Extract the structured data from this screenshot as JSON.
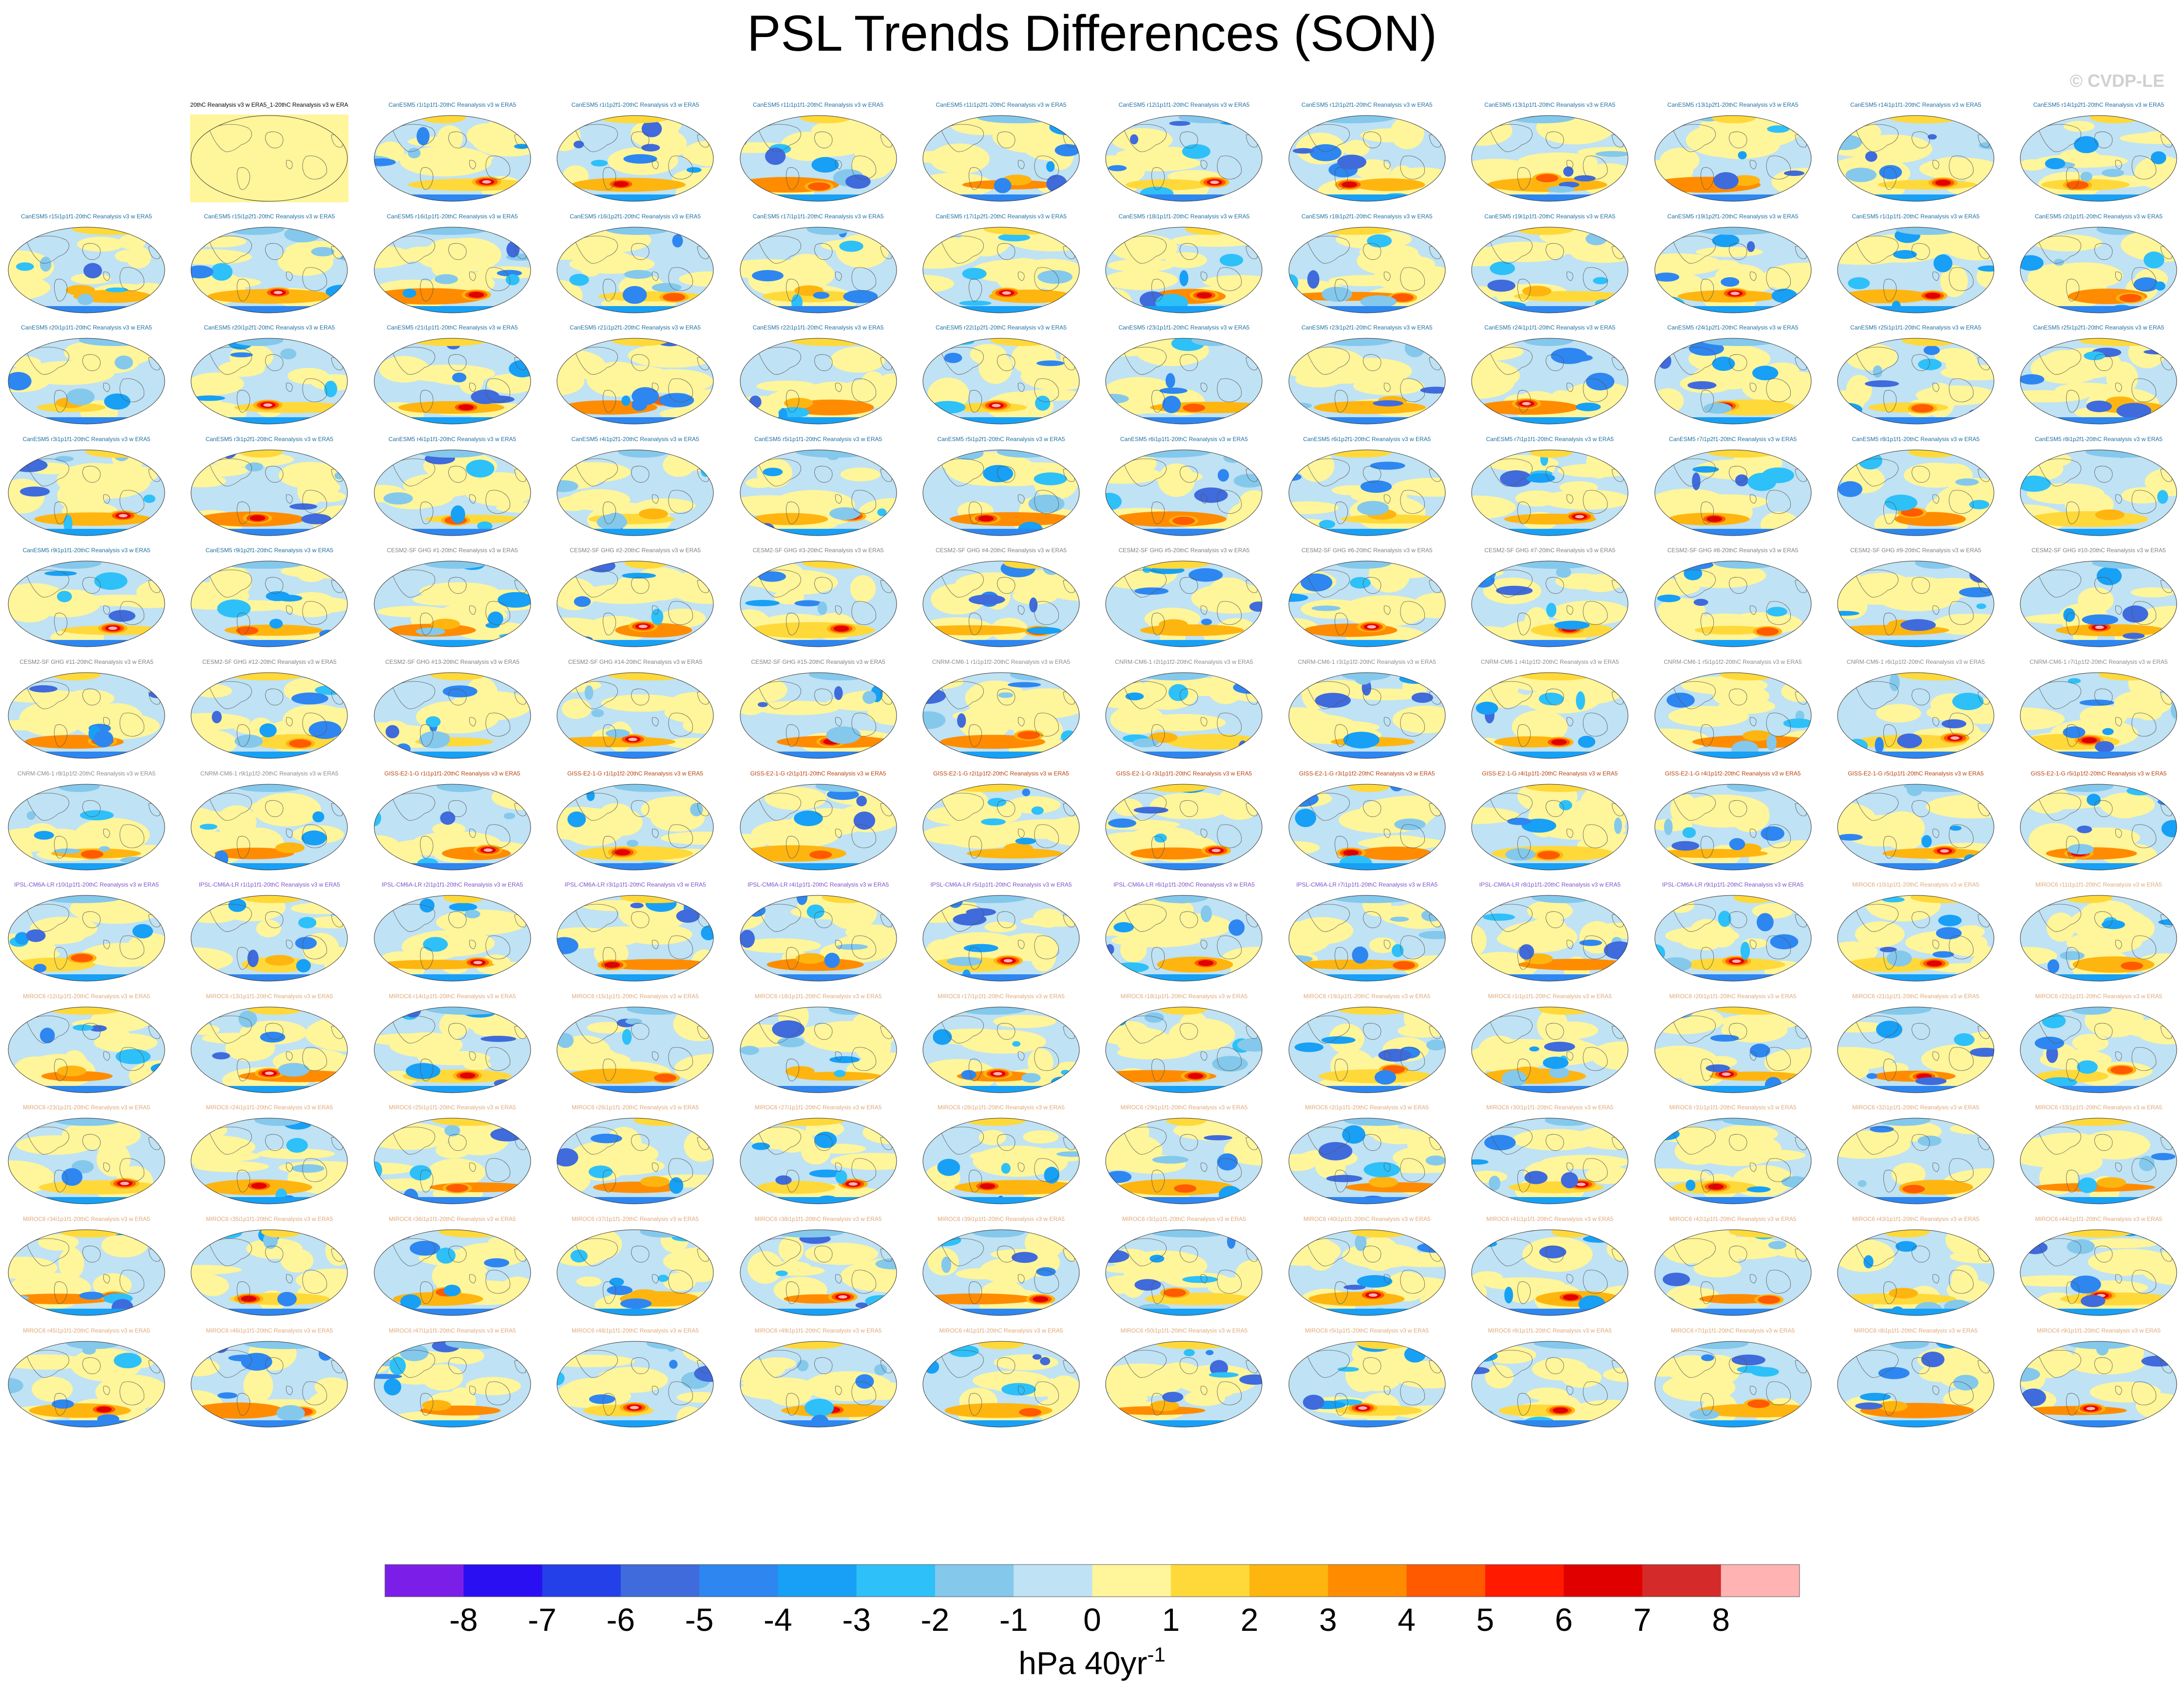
{
  "title": "PSL Trends Differences (SON)",
  "watermark": "© CVDP-LE",
  "chart_data": {
    "type": "heatmap",
    "title": "PSL Trends Differences (SON)",
    "projection": "Robinson global maps, Pacific-centered",
    "colorbar": {
      "ticks": [
        "-8",
        "-7",
        "-6",
        "-5",
        "-4",
        "-3",
        "-2",
        "-1",
        "0",
        "1",
        "2",
        "3",
        "4",
        "5",
        "6",
        "7",
        "8"
      ],
      "colors": [
        "#7b1fe8",
        "#2a0ff2",
        "#2440e8",
        "#3f6bdc",
        "#2e86f0",
        "#17a0f5",
        "#2ec0f8",
        "#84c8ec",
        "#bfe2f4",
        "#fff59a",
        "#ffd93a",
        "#ffb50f",
        "#ff8c00",
        "#ff5a00",
        "#ff1a00",
        "#e00000",
        "#d42a2a",
        "#ffb3b3"
      ],
      "unit_base": "hPa 40yr",
      "unit_exp": "-1",
      "range": [
        -8,
        8
      ]
    },
    "panels": [
      {
        "label": "20thC Reanalysis v3 w ERA5_1-20thC Reanalysis v3 w ERA5",
        "group": "obs"
      },
      {
        "label": "CanESM5 r1i1p1f1-20thC Reanalysis v3 w ERA5",
        "group": "CanESM5"
      },
      {
        "label": "CanESM5 r1i1p2f1-20thC Reanalysis v3 w ERA5",
        "group": "CanESM5"
      },
      {
        "label": "CanESM5 r11i1p1f1-20thC Reanalysis v3 w ERA5",
        "group": "CanESM5"
      },
      {
        "label": "CanESM5 r11i1p2f1-20thC Reanalysis v3 w ERA5",
        "group": "CanESM5"
      },
      {
        "label": "CanESM5 r12i1p1f1-20thC Reanalysis v3 w ERA5",
        "group": "CanESM5"
      },
      {
        "label": "CanESM5 r12i1p2f1-20thC Reanalysis v3 w ERA5",
        "group": "CanESM5"
      },
      {
        "label": "CanESM5 r13i1p1f1-20thC Reanalysis v3 w ERA5",
        "group": "CanESM5"
      },
      {
        "label": "CanESM5 r13i1p2f1-20thC Reanalysis v3 w ERA5",
        "group": "CanESM5"
      },
      {
        "label": "CanESM5 r14i1p1f1-20thC Reanalysis v3 w ERA5",
        "group": "CanESM5"
      },
      {
        "label": "CanESM5 r14i1p2f1-20thC Reanalysis v3 w ERA5",
        "group": "CanESM5"
      },
      {
        "label": "CanESM5 r15i1p1f1-20thC Reanalysis v3 w ERA5",
        "group": "CanESM5"
      },
      {
        "label": "CanESM5 r15i1p2f1-20thC Reanalysis v3 w ERA5",
        "group": "CanESM5"
      },
      {
        "label": "CanESM5 r16i1p1f1-20thC Reanalysis v3 w ERA5",
        "group": "CanESM5"
      },
      {
        "label": "CanESM5 r16i1p2f1-20thC Reanalysis v3 w ERA5",
        "group": "CanESM5"
      },
      {
        "label": "CanESM5 r17i1p1f1-20thC Reanalysis v3 w ERA5",
        "group": "CanESM5"
      },
      {
        "label": "CanESM5 r17i1p2f1-20thC Reanalysis v3 w ERA5",
        "group": "CanESM5"
      },
      {
        "label": "CanESM5 r18i1p1f1-20thC Reanalysis v3 w ERA5",
        "group": "CanESM5"
      },
      {
        "label": "CanESM5 r18i1p2f1-20thC Reanalysis v3 w ERA5",
        "group": "CanESM5"
      },
      {
        "label": "CanESM5 r19i1p1f1-20thC Reanalysis v3 w ERA5",
        "group": "CanESM5"
      },
      {
        "label": "CanESM5 r19i1p2f1-20thC Reanalysis v3 w ERA5",
        "group": "CanESM5"
      },
      {
        "label": "CanESM5 r1i1p1f1-20thC Reanalysis v3 w ERA5",
        "group": "CanESM5"
      },
      {
        "label": "CanESM5 r2i1p1f1-20thC Reanalysis v3 w ERA5",
        "group": "CanESM5"
      },
      {
        "label": "CanESM5 r20i1p1f1-20thC Reanalysis v3 w ERA5",
        "group": "CanESM5"
      },
      {
        "label": "CanESM5 r20i1p2f1-20thC Reanalysis v3 w ERA5",
        "group": "CanESM5"
      },
      {
        "label": "CanESM5 r21i1p1f1-20thC Reanalysis v3 w ERA5",
        "group": "CanESM5"
      },
      {
        "label": "CanESM5 r21i1p2f1-20thC Reanalysis v3 w ERA5",
        "group": "CanESM5"
      },
      {
        "label": "CanESM5 r22i1p1f1-20thC Reanalysis v3 w ERA5",
        "group": "CanESM5"
      },
      {
        "label": "CanESM5 r22i1p2f1-20thC Reanalysis v3 w ERA5",
        "group": "CanESM5"
      },
      {
        "label": "CanESM5 r23i1p1f1-20thC Reanalysis v3 w ERA5",
        "group": "CanESM5"
      },
      {
        "label": "CanESM5 r23i1p2f1-20thC Reanalysis v3 w ERA5",
        "group": "CanESM5"
      },
      {
        "label": "CanESM5 r24i1p1f1-20thC Reanalysis v3 w ERA5",
        "group": "CanESM5"
      },
      {
        "label": "CanESM5 r24i1p2f1-20thC Reanalysis v3 w ERA5",
        "group": "CanESM5"
      },
      {
        "label": "CanESM5 r25i1p1f1-20thC Reanalysis v3 w ERA5",
        "group": "CanESM5"
      },
      {
        "label": "CanESM5 r25i1p2f1-20thC Reanalysis v3 w ERA5",
        "group": "CanESM5"
      },
      {
        "label": "CanESM5 r3i1p1f1-20thC Reanalysis v3 w ERA5",
        "group": "CanESM5"
      },
      {
        "label": "CanESM5 r3i1p2f1-20thC Reanalysis v3 w ERA5",
        "group": "CanESM5"
      },
      {
        "label": "CanESM5 r4i1p1f1-20thC Reanalysis v3 w ERA5",
        "group": "CanESM5"
      },
      {
        "label": "CanESM5 r4i1p2f1-20thC Reanalysis v3 w ERA5",
        "group": "CanESM5"
      },
      {
        "label": "CanESM5 r5i1p1f1-20thC Reanalysis v3 w ERA5",
        "group": "CanESM5"
      },
      {
        "label": "CanESM5 r5i1p2f1-20thC Reanalysis v3 w ERA5",
        "group": "CanESM5"
      },
      {
        "label": "CanESM5 r6i1p1f1-20thC Reanalysis v3 w ERA5",
        "group": "CanESM5"
      },
      {
        "label": "CanESM5 r6i1p2f1-20thC Reanalysis v3 w ERA5",
        "group": "CanESM5"
      },
      {
        "label": "CanESM5 r7i1p1f1-20thC Reanalysis v3 w ERA5",
        "group": "CanESM5"
      },
      {
        "label": "CanESM5 r7i1p2f1-20thC Reanalysis v3 w ERA5",
        "group": "CanESM5"
      },
      {
        "label": "CanESM5 r8i1p1f1-20thC Reanalysis v3 w ERA5",
        "group": "CanESM5"
      },
      {
        "label": "CanESM5 r8i1p2f1-20thC Reanalysis v3 w ERA5",
        "group": "CanESM5"
      },
      {
        "label": "CanESM5 r9i1p1f1-20thC Reanalysis v3 w ERA5",
        "group": "CanESM5"
      },
      {
        "label": "CanESM5 r9i1p2f1-20thC Reanalysis v3 w ERA5",
        "group": "CanESM5"
      },
      {
        "label": "CESM2-SF GHG #1-20thC Reanalysis v3 w ERA5",
        "group": "CESM2"
      },
      {
        "label": "CESM2-SF GHG #2-20thC Reanalysis v3 w ERA5",
        "group": "CESM2"
      },
      {
        "label": "CESM2-SF GHG #3-20thC Reanalysis v3 w ERA5",
        "group": "CESM2"
      },
      {
        "label": "CESM2-SF GHG #4-20thC Reanalysis v3 w ERA5",
        "group": "CESM2"
      },
      {
        "label": "CESM2-SF GHG #5-20thC Reanalysis v3 w ERA5",
        "group": "CESM2"
      },
      {
        "label": "CESM2-SF GHG #6-20thC Reanalysis v3 w ERA5",
        "group": "CESM2"
      },
      {
        "label": "CESM2-SF GHG #7-20thC Reanalysis v3 w ERA5",
        "group": "CESM2"
      },
      {
        "label": "CESM2-SF GHG #8-20thC Reanalysis v3 w ERA5",
        "group": "CESM2"
      },
      {
        "label": "CESM2-SF GHG #9-20thC Reanalysis v3 w ERA5",
        "group": "CESM2"
      },
      {
        "label": "CESM2-SF GHG #10-20thC Reanalysis v3 w ERA5",
        "group": "CESM2"
      },
      {
        "label": "CESM2-SF GHG #11-20thC Reanalysis v3 w ERA5",
        "group": "CESM2"
      },
      {
        "label": "CESM2-SF GHG #12-20thC Reanalysis v3 w ERA5",
        "group": "CESM2"
      },
      {
        "label": "CESM2-SF GHG #13-20thC Reanalysis v3 w ERA5",
        "group": "CESM2"
      },
      {
        "label": "CESM2-SF GHG #14-20thC Reanalysis v3 w ERA5",
        "group": "CESM2"
      },
      {
        "label": "CESM2-SF GHG #15-20thC Reanalysis v3 w ERA5",
        "group": "CESM2"
      },
      {
        "label": "CNRM-CM6-1 r1i1p1f2-20thC Reanalysis v3 w ERA5",
        "group": "CNRM"
      },
      {
        "label": "CNRM-CM6-1 r2i1p1f2-20thC Reanalysis v3 w ERA5",
        "group": "CNRM"
      },
      {
        "label": "CNRM-CM6-1 r3i1p1f2-20thC Reanalysis v3 w ERA5",
        "group": "CNRM"
      },
      {
        "label": "CNRM-CM6-1 r4i1p1f2-20thC Reanalysis v3 w ERA5",
        "group": "CNRM"
      },
      {
        "label": "CNRM-CM6-1 r5i1p1f2-20thC Reanalysis v3 w ERA5",
        "group": "CNRM"
      },
      {
        "label": "CNRM-CM6-1 r6i1p1f2-20thC Reanalysis v3 w ERA5",
        "group": "CNRM"
      },
      {
        "label": "CNRM-CM6-1 r7i1p1f2-20thC Reanalysis v3 w ERA5",
        "group": "CNRM"
      },
      {
        "label": "CNRM-CM6-1 r8i1p1f2-20thC Reanalysis v3 w ERA5",
        "group": "CNRM"
      },
      {
        "label": "CNRM-CM6-1 r9i1p1f2-20thC Reanalysis v3 w ERA5",
        "group": "CNRM"
      },
      {
        "label": "GISS-E2-1-G r1i1p1f1-20thC Reanalysis v3 w ERA5",
        "group": "GISS"
      },
      {
        "label": "GISS-E2-1-G r1i1p1f2-20thC Reanalysis v3 w ERA5",
        "group": "GISS"
      },
      {
        "label": "GISS-E2-1-G r2i1p1f1-20thC Reanalysis v3 w ERA5",
        "group": "GISS"
      },
      {
        "label": "GISS-E2-1-G r2i1p1f2-20thC Reanalysis v3 w ERA5",
        "group": "GISS"
      },
      {
        "label": "GISS-E2-1-G r3i1p1f1-20thC Reanalysis v3 w ERA5",
        "group": "GISS"
      },
      {
        "label": "GISS-E2-1-G r3i1p1f2-20thC Reanalysis v3 w ERA5",
        "group": "GISS"
      },
      {
        "label": "GISS-E2-1-G r4i1p1f1-20thC Reanalysis v3 w ERA5",
        "group": "GISS"
      },
      {
        "label": "GISS-E2-1-G r4i1p1f2-20thC Reanalysis v3 w ERA5",
        "group": "GISS"
      },
      {
        "label": "GISS-E2-1-G r5i1p1f1-20thC Reanalysis v3 w ERA5",
        "group": "GISS"
      },
      {
        "label": "GISS-E2-1-G r5i1p1f2-20thC Reanalysis v3 w ERA5",
        "group": "GISS"
      },
      {
        "label": "IPSL-CM6A-LR r10i1p1f1-20thC Reanalysis v3 w ERA5",
        "group": "IPSL"
      },
      {
        "label": "IPSL-CM6A-LR r1i1p1f1-20thC Reanalysis v3 w ERA5",
        "group": "IPSL"
      },
      {
        "label": "IPSL-CM6A-LR r2i1p1f1-20thC Reanalysis v3 w ERA5",
        "group": "IPSL"
      },
      {
        "label": "IPSL-CM6A-LR r3i1p1f1-20thC Reanalysis v3 w ERA5",
        "group": "IPSL"
      },
      {
        "label": "IPSL-CM6A-LR r4i1p1f1-20thC Reanalysis v3 w ERA5",
        "group": "IPSL"
      },
      {
        "label": "IPSL-CM6A-LR r5i1p1f1-20thC Reanalysis v3 w ERA5",
        "group": "IPSL"
      },
      {
        "label": "IPSL-CM6A-LR r6i1p1f1-20thC Reanalysis v3 w ERA5",
        "group": "IPSL"
      },
      {
        "label": "IPSL-CM6A-LR r7i1p1f1-20thC Reanalysis v3 w ERA5",
        "group": "IPSL"
      },
      {
        "label": "IPSL-CM6A-LR r8i1p1f1-20thC Reanalysis v3 w ERA5",
        "group": "IPSL"
      },
      {
        "label": "IPSL-CM6A-LR r9i1p1f1-20thC Reanalysis v3 w ERA5",
        "group": "IPSL"
      },
      {
        "label": "MIROC6 r10i1p1f1-20thC Reanalysis v3 w ERA5",
        "group": "MIROC6"
      },
      {
        "label": "MIROC6 r11i1p1f1-20thC Reanalysis v3 w ERA5",
        "group": "MIROC6"
      },
      {
        "label": "MIROC6 r12i1p1f1-20thC Reanalysis v3 w ERA5",
        "group": "MIROC6"
      },
      {
        "label": "MIROC6 r13i1p1f1-20thC Reanalysis v3 w ERA5",
        "group": "MIROC6"
      },
      {
        "label": "MIROC6 r14i1p1f1-20thC Reanalysis v3 w ERA5",
        "group": "MIROC6"
      },
      {
        "label": "MIROC6 r15i1p1f1-20thC Reanalysis v3 w ERA5",
        "group": "MIROC6"
      },
      {
        "label": "MIROC6 r16i1p1f1-20thC Reanalysis v3 w ERA5",
        "group": "MIROC6"
      },
      {
        "label": "MIROC6 r17i1p1f1-20thC Reanalysis v3 w ERA5",
        "group": "MIROC6"
      },
      {
        "label": "MIROC6 r18i1p1f1-20thC Reanalysis v3 w ERA5",
        "group": "MIROC6"
      },
      {
        "label": "MIROC6 r19i1p1f1-20thC Reanalysis v3 w ERA5",
        "group": "MIROC6"
      },
      {
        "label": "MIROC6 r1i1p1f1-20thC Reanalysis v3 w ERA5",
        "group": "MIROC6"
      },
      {
        "label": "MIROC6 r20i1p1f1-20thC Reanalysis v3 w ERA5",
        "group": "MIROC6"
      },
      {
        "label": "MIROC6 r21i1p1f1-20thC Reanalysis v3 w ERA5",
        "group": "MIROC6"
      },
      {
        "label": "MIROC6 r22i1p1f1-20thC Reanalysis v3 w ERA5",
        "group": "MIROC6"
      },
      {
        "label": "MIROC6 r23i1p1f1-20thC Reanalysis v3 w ERA5",
        "group": "MIROC6"
      },
      {
        "label": "MIROC6 r24i1p1f1-20thC Reanalysis v3 w ERA5",
        "group": "MIROC6"
      },
      {
        "label": "MIROC6 r25i1p1f1-20thC Reanalysis v3 w ERA5",
        "group": "MIROC6"
      },
      {
        "label": "MIROC6 r26i1p1f1-20thC Reanalysis v3 w ERA5",
        "group": "MIROC6"
      },
      {
        "label": "MIROC6 r27i1p1f1-20thC Reanalysis v3 w ERA5",
        "group": "MIROC6"
      },
      {
        "label": "MIROC6 r28i1p1f1-20thC Reanalysis v3 w ERA5",
        "group": "MIROC6"
      },
      {
        "label": "MIROC6 r29i1p1f1-20thC Reanalysis v3 w ERA5",
        "group": "MIROC6"
      },
      {
        "label": "MIROC6 r2i1p1f1-20thC Reanalysis v3 w ERA5",
        "group": "MIROC6"
      },
      {
        "label": "MIROC6 r30i1p1f1-20thC Reanalysis v3 w ERA5",
        "group": "MIROC6"
      },
      {
        "label": "MIROC6 r31i1p1f1-20thC Reanalysis v3 w ERA5",
        "group": "MIROC6"
      },
      {
        "label": "MIROC6 r32i1p1f1-20thC Reanalysis v3 w ERA5",
        "group": "MIROC6"
      },
      {
        "label": "MIROC6 r33i1p1f1-20thC Reanalysis v3 w ERA5",
        "group": "MIROC6"
      },
      {
        "label": "MIROC6 r34i1p1f1-20thC Reanalysis v3 w ERA5",
        "group": "MIROC6"
      },
      {
        "label": "MIROC6 r35i1p1f1-20thC Reanalysis v3 w ERA5",
        "group": "MIROC6"
      },
      {
        "label": "MIROC6 r36i1p1f1-20thC Reanalysis v3 w ERA5",
        "group": "MIROC6"
      },
      {
        "label": "MIROC6 r37i1p1f1-20thC Reanalysis v3 w ERA5",
        "group": "MIROC6"
      },
      {
        "label": "MIROC6 r38i1p1f1-20thC Reanalysis v3 w ERA5",
        "group": "MIROC6"
      },
      {
        "label": "MIROC6 r39i1p1f1-20thC Reanalysis v3 w ERA5",
        "group": "MIROC6"
      },
      {
        "label": "MIROC6 r3i1p1f1-20thC Reanalysis v3 w ERA5",
        "group": "MIROC6"
      },
      {
        "label": "MIROC6 r40i1p1f1-20thC Reanalysis v3 w ERA5",
        "group": "MIROC6"
      },
      {
        "label": "MIROC6 r41i1p1f1-20thC Reanalysis v3 w ERA5",
        "group": "MIROC6"
      },
      {
        "label": "MIROC6 r42i1p1f1-20thC Reanalysis v3 w ERA5",
        "group": "MIROC6"
      },
      {
        "label": "MIROC6 r43i1p1f1-20thC Reanalysis v3 w ERA5",
        "group": "MIROC6"
      },
      {
        "label": "MIROC6 r44i1p1f1-20thC Reanalysis v3 w ERA5",
        "group": "MIROC6"
      },
      {
        "label": "MIROC6 r45i1p1f1-20thC Reanalysis v3 w ERA5",
        "group": "MIROC6"
      },
      {
        "label": "MIROC6 r46i1p1f1-20thC Reanalysis v3 w ERA5",
        "group": "MIROC6"
      },
      {
        "label": "MIROC6 r47i1p1f1-20thC Reanalysis v3 w ERA5",
        "group": "MIROC6"
      },
      {
        "label": "MIROC6 r48i1p1f1-20thC Reanalysis v3 w ERA5",
        "group": "MIROC6"
      },
      {
        "label": "MIROC6 r49i1p1f1-20thC Reanalysis v3 w ERA5",
        "group": "MIROC6"
      },
      {
        "label": "MIROC6 r4i1p1f1-20thC Reanalysis v3 w ERA5",
        "group": "MIROC6"
      },
      {
        "label": "MIROC6 r50i1p1f1-20thC Reanalysis v3 w ERA5",
        "group": "MIROC6"
      },
      {
        "label": "MIROC6 r5i1p1f1-20thC Reanalysis v3 w ERA5",
        "group": "MIROC6"
      },
      {
        "label": "MIROC6 r6i1p1f1-20thC Reanalysis v3 w ERA5",
        "group": "MIROC6"
      },
      {
        "label": "MIROC6 r7i1p1f1-20thC Reanalysis v3 w ERA5",
        "group": "MIROC6"
      },
      {
        "label": "MIROC6 r8i1p1f1-20thC Reanalysis v3 w ERA5",
        "group": "MIROC6"
      },
      {
        "label": "MIROC6 r9i1p1f1-20thC Reanalysis v3 w ERA5",
        "group": "MIROC6"
      }
    ],
    "group_colors": {
      "obs": "#000000",
      "CanESM5": "#1e6fa0",
      "CESM2": "#808080",
      "CNRM": "#8c8c8c",
      "GISS": "#b8420c",
      "IPSL": "#8050c8",
      "MIROC6": "#e0a878"
    }
  }
}
